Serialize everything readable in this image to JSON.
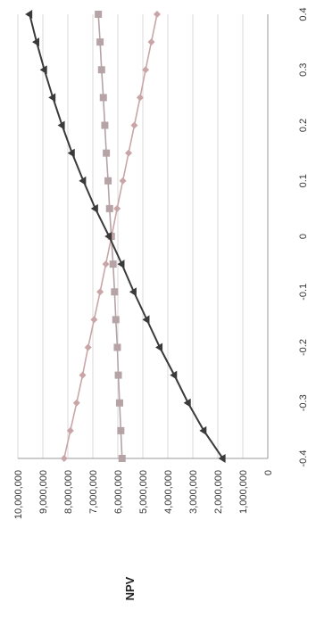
{
  "chart_data": {
    "type": "line",
    "title": "",
    "xlabel": "",
    "ylabel": "NPV",
    "x": [
      -0.4,
      -0.35,
      -0.3,
      -0.25,
      -0.2,
      -0.15,
      -0.1,
      -0.05,
      0,
      0.05,
      0.1,
      0.15,
      0.2,
      0.25,
      0.3,
      0.35,
      0.4
    ],
    "x_ticks": [
      "-0.4",
      "-0.3",
      "-0.2",
      "-0.1",
      "0",
      "0.1",
      "0.2",
      "0.3",
      "0.4"
    ],
    "y_ticks": [
      "0",
      "1,000,000",
      "2,000,000",
      "3,000,000",
      "4,000,000",
      "5,000,000",
      "6,000,000",
      "7,000,000",
      "8,000,000",
      "9,000,000",
      "10,000,000"
    ],
    "xlim": [
      -0.4,
      0.4
    ],
    "ylim": [
      0,
      10000000
    ],
    "grid": true,
    "orientation": "rotated-90",
    "series": [
      {
        "marker": "triangle",
        "color": "#3a3a3a",
        "values": [
          1800000,
          2560000,
          3190000,
          3740000,
          4320000,
          4840000,
          5360000,
          5840000,
          6350000,
          6900000,
          7380000,
          7830000,
          8230000,
          8600000,
          8940000,
          9250000,
          9530000
        ]
      },
      {
        "marker": "square",
        "color": "#b5a3a6",
        "values": [
          5830000,
          5880000,
          5930000,
          5980000,
          6020000,
          6080000,
          6130000,
          6190000,
          6260000,
          6330000,
          6390000,
          6460000,
          6520000,
          6580000,
          6650000,
          6710000,
          6780000
        ]
      },
      {
        "marker": "diamond",
        "color": "#c9a5a8",
        "values": [
          8150000,
          7900000,
          7650000,
          7410000,
          7190000,
          6950000,
          6710000,
          6480000,
          6250000,
          6030000,
          5800000,
          5570000,
          5340000,
          5110000,
          4890000,
          4660000,
          4430000
        ]
      }
    ]
  }
}
